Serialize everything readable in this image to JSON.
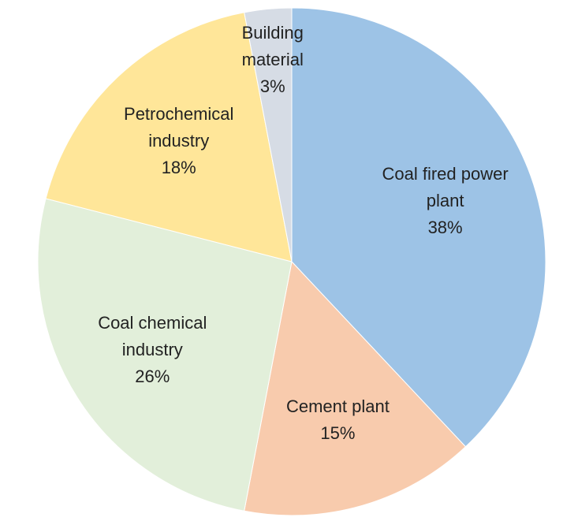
{
  "chart_data": {
    "type": "pie",
    "categories": [
      "Coal fired power plant",
      "Cement plant",
      "Coal chemical industry",
      "Petrochemical industry",
      "Building material"
    ],
    "values": [
      38,
      15,
      26,
      18,
      3
    ],
    "value_labels": [
      "38%",
      "15%",
      "26%",
      "18%",
      "3%"
    ],
    "colors": [
      "#9dc3e6",
      "#f8cbad",
      "#e2efda",
      "#ffe699",
      "#d6dce5"
    ]
  }
}
